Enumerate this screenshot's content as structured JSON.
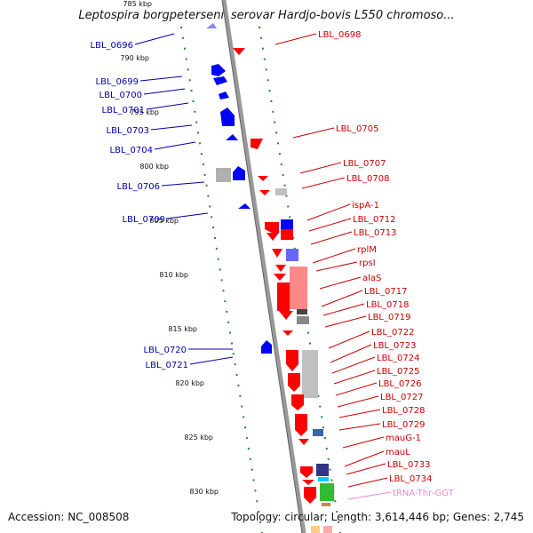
{
  "title": "Leptospira borgpetersenii serovar Hardjo-bovis L550 chromoso...",
  "footer": {
    "accession": "Accession: NC_008508",
    "summary": "Topology: circular; Length: 3,614,446 bp; Genes: 2,745"
  },
  "colors": {
    "forward_label": "#cc0000",
    "reverse_label": "#0000aa",
    "trna_label": "#ee88cc",
    "feature_red": "#ff0000",
    "feature_blue": "#0000ff",
    "axis_green": "#228822"
  },
  "scale_ticks": [
    "785 kbp",
    "790 kbp",
    "795 kbp",
    "800 kbp",
    "805 kbp",
    "810 kbp",
    "815 kbp",
    "820 kbp",
    "825 kbp",
    "830 kbp"
  ],
  "left_labels": [
    "LBL_0696",
    "LBL_0699",
    "LBL_0700",
    "LBL_0701",
    "LBL_0703",
    "LBL_0704",
    "LBL_0706",
    "LBL_0709",
    "LBL_0720",
    "LBL_0721"
  ],
  "right_labels": [
    "LBL_0698",
    "LBL_0705",
    "LBL_0707",
    "LBL_0708",
    "ispA-1",
    "LBL_0712",
    "LBL_0713",
    "rplM",
    "rpsI",
    "alaS",
    "LBL_0717",
    "LBL_0718",
    "LBL_0719",
    "LBL_0722",
    "LBL_0723",
    "LBL_0724",
    "LBL_0725",
    "LBL_0726",
    "LBL_0727",
    "LBL_0728",
    "LBL_0729",
    "mauG-1",
    "mauL",
    "LBL_0733",
    "LBL_0734",
    "tRNA-Thr-GGT"
  ]
}
